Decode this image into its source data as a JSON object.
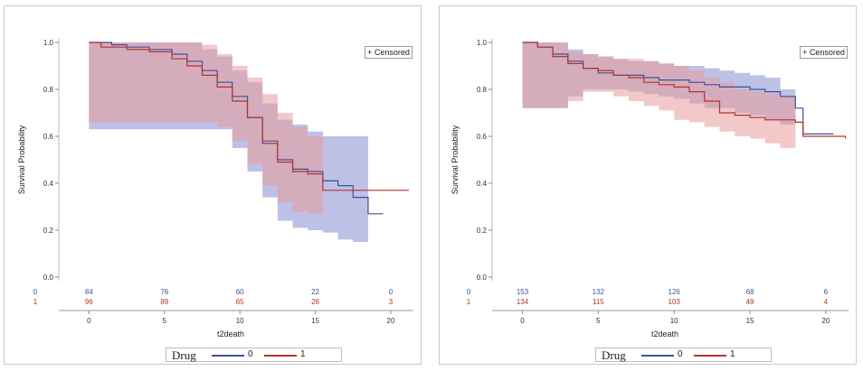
{
  "legend": {
    "title": "Drug",
    "groups": [
      "0",
      "1"
    ],
    "censored_label": "+ Censored"
  },
  "colors": {
    "group0": "#3f4fa0",
    "group1": "#b5332e",
    "band0": "#8f97d3",
    "band1": "#e79a9a"
  },
  "chart_data": [
    {
      "type": "line",
      "subtype": "kaplan-meier survival curve with confidence bands",
      "ylabel": "Survival Probability",
      "xlabel": "t2death",
      "xlim": [
        -2,
        21.5
      ],
      "ylim": [
        0,
        1.0
      ],
      "xticks": [
        0,
        5,
        10,
        15,
        20
      ],
      "yticks": [
        0.0,
        0.2,
        0.4,
        0.6,
        0.8,
        1.0
      ],
      "ytick_labels": [
        "0.0",
        "0.2",
        "0.4",
        "0.6",
        "0.8",
        "1.0"
      ],
      "legend_placement": "bottom",
      "series": [
        {
          "name": "0",
          "x": [
            0,
            1.5,
            2.5,
            4,
            5.5,
            6.5,
            7.5,
            8.5,
            9.5,
            10.5,
            11.5,
            12.5,
            13.5,
            14.5,
            15.5,
            16.5,
            17.5,
            18.5,
            19.5
          ],
          "y": [
            1.0,
            0.99,
            0.98,
            0.97,
            0.95,
            0.92,
            0.88,
            0.83,
            0.77,
            0.68,
            0.57,
            0.5,
            0.46,
            0.45,
            0.41,
            0.39,
            0.34,
            0.27,
            0.27
          ],
          "lower": [
            0.63,
            0.63,
            0.63,
            0.63,
            0.63,
            0.63,
            0.63,
            0.63,
            0.55,
            0.45,
            0.34,
            0.24,
            0.21,
            0.2,
            0.19,
            0.16,
            0.15,
            0.15,
            null
          ],
          "upper": [
            1.0,
            1.0,
            1.0,
            1.0,
            1.0,
            1.0,
            0.97,
            0.94,
            0.88,
            0.83,
            0.74,
            0.67,
            0.65,
            0.62,
            0.6,
            0.6,
            0.6,
            0.6,
            null
          ]
        },
        {
          "name": "1",
          "x": [
            0,
            0.8,
            2.5,
            4,
            5.5,
            6.5,
            7.5,
            8.5,
            9.5,
            10.5,
            11.5,
            12.5,
            13.5,
            14.5,
            15.5,
            16.5,
            17.5,
            18.5,
            19.5,
            20.5,
            21.2
          ],
          "y": [
            1.0,
            0.98,
            0.97,
            0.96,
            0.93,
            0.9,
            0.86,
            0.81,
            0.75,
            0.68,
            0.58,
            0.49,
            0.45,
            0.44,
            0.37,
            0.37,
            0.37,
            0.37,
            0.37,
            0.37,
            0.37
          ],
          "lower": [
            0.66,
            0.66,
            0.66,
            0.66,
            0.66,
            0.66,
            0.66,
            0.64,
            0.58,
            0.48,
            0.39,
            0.32,
            0.28,
            0.27,
            0.26,
            null,
            null,
            null,
            null,
            null,
            null
          ],
          "upper": [
            1.0,
            1.0,
            1.0,
            1.0,
            1.0,
            1.0,
            0.99,
            0.95,
            0.9,
            0.85,
            0.78,
            0.7,
            0.64,
            0.6,
            0.58,
            null,
            null,
            null,
            null,
            null,
            null
          ]
        }
      ],
      "at_risk": {
        "times": [
          0,
          5,
          10,
          15,
          20
        ],
        "rows": [
          {
            "group": "0",
            "values": [
              "84",
              "76",
              "60",
              "22",
              "0"
            ]
          },
          {
            "group": "1",
            "values": [
              "96",
              "89",
              "65",
              "26",
              "3"
            ]
          }
        ]
      }
    },
    {
      "type": "line",
      "subtype": "kaplan-meier survival curve with confidence bands",
      "ylabel": "Survival Probability",
      "xlabel": "t2death",
      "xlim": [
        -2,
        21.5
      ],
      "ylim": [
        0,
        1.0
      ],
      "xticks": [
        0,
        5,
        10,
        15,
        20
      ],
      "yticks": [
        0.0,
        0.2,
        0.4,
        0.6,
        0.8,
        1.0
      ],
      "ytick_labels": [
        "0.0",
        "0.2",
        "0.4",
        "0.6",
        "0.8",
        "1.0"
      ],
      "legend_placement": "bottom",
      "series": [
        {
          "name": "0",
          "x": [
            0,
            1,
            2,
            3,
            4,
            5,
            6,
            7,
            8,
            9,
            10,
            11,
            12,
            13,
            14,
            15,
            16,
            17,
            18,
            18.5,
            19.5,
            20.5
          ],
          "y": [
            1.0,
            0.98,
            0.95,
            0.92,
            0.89,
            0.87,
            0.86,
            0.86,
            0.85,
            0.84,
            0.84,
            0.83,
            0.82,
            0.81,
            0.81,
            0.8,
            0.79,
            0.77,
            0.72,
            0.61,
            0.61,
            0.61
          ],
          "lower": [
            0.72,
            0.72,
            0.72,
            0.77,
            0.8,
            0.8,
            0.8,
            0.79,
            0.78,
            0.77,
            0.76,
            0.74,
            0.72,
            0.72,
            0.7,
            0.69,
            0.67,
            0.65,
            0.5,
            null,
            null,
            null
          ],
          "upper": [
            1.0,
            1.0,
            1.0,
            0.97,
            0.95,
            0.94,
            0.93,
            0.92,
            0.92,
            0.91,
            0.9,
            0.9,
            0.89,
            0.88,
            0.87,
            0.86,
            0.85,
            0.8,
            0.8,
            null,
            null,
            null
          ]
        },
        {
          "name": "1",
          "x": [
            0,
            1,
            2,
            3,
            4,
            5,
            6,
            7,
            8,
            9,
            10,
            11,
            12,
            13,
            14,
            15,
            16,
            17,
            18,
            18.5,
            19.5,
            20.5,
            21.3
          ],
          "y": [
            1.0,
            0.98,
            0.94,
            0.91,
            0.89,
            0.88,
            0.86,
            0.85,
            0.83,
            0.82,
            0.81,
            0.79,
            0.75,
            0.7,
            0.69,
            0.68,
            0.67,
            0.67,
            0.66,
            0.6,
            0.6,
            0.6,
            0.59
          ],
          "lower": [
            0.72,
            0.72,
            0.72,
            0.75,
            0.79,
            0.79,
            0.77,
            0.75,
            0.73,
            0.71,
            0.67,
            0.66,
            0.64,
            0.62,
            0.6,
            0.59,
            0.57,
            0.55,
            0.49,
            null,
            null,
            null,
            null
          ],
          "upper": [
            1.0,
            1.0,
            1.0,
            0.96,
            0.95,
            0.94,
            0.93,
            0.93,
            0.92,
            0.91,
            0.9,
            0.88,
            0.85,
            0.83,
            0.8,
            0.79,
            0.78,
            0.77,
            0.76,
            null,
            null,
            null,
            null
          ]
        }
      ],
      "at_risk": {
        "times": [
          0,
          5,
          10,
          15,
          20
        ],
        "rows": [
          {
            "group": "0",
            "values": [
              "153",
              "132",
              "126",
              "68",
              "6"
            ]
          },
          {
            "group": "1",
            "values": [
              "134",
              "115",
              "103",
              "49",
              "4"
            ]
          }
        ]
      }
    }
  ]
}
